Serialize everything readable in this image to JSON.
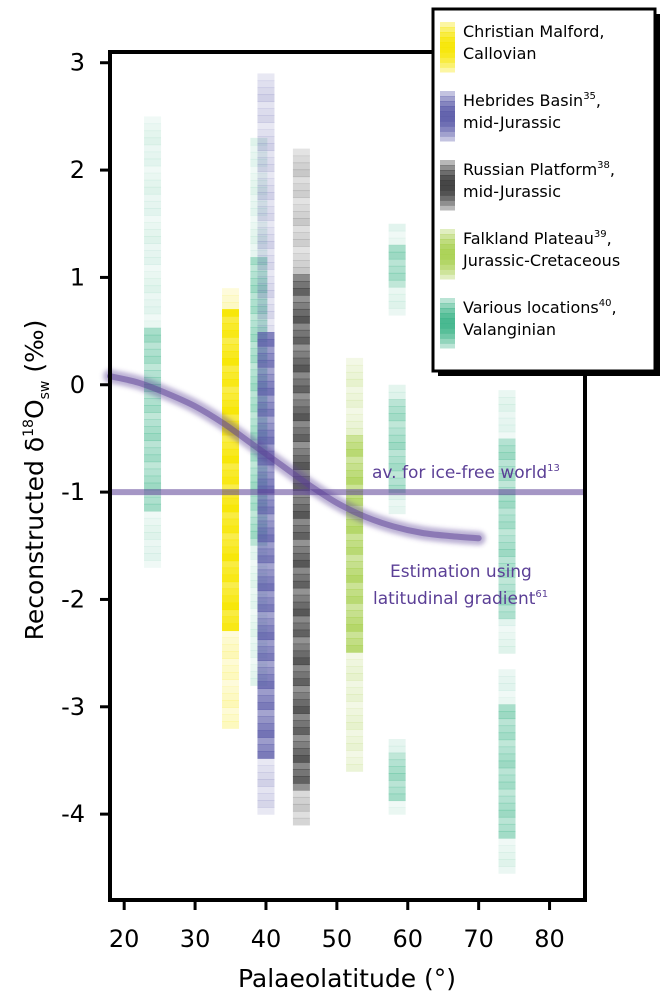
{
  "chart_data": {
    "type": "scatter",
    "xlabel": "Palaeolatitude (°)",
    "ylabel_parts": [
      "Reconstructed  δ",
      "18",
      "O",
      "sw",
      " (‰)"
    ],
    "xlim": [
      18,
      85
    ],
    "ylim": [
      -4.8,
      3.1
    ],
    "xticks": [
      20,
      30,
      40,
      50,
      60,
      70,
      80
    ],
    "yticks": [
      3,
      2,
      1,
      0,
      -1,
      -2,
      -3,
      -4
    ],
    "grid": false,
    "legend_position": "top-right",
    "series": [
      {
        "key": "christian",
        "name": "Christian Malford,",
        "name_line2": "Callovian",
        "sup": "",
        "color": "#f7e600",
        "columns": [
          {
            "x": 35,
            "min": -3.2,
            "max": 0.9,
            "core_min": -2.3,
            "core_max": 0.7
          }
        ]
      },
      {
        "key": "hebrides",
        "name": "Hebrides Basin",
        "name_line2": "mid-Jurassic",
        "sup": "35",
        "color": "#5a5aa8",
        "columns": [
          {
            "x": 40,
            "min": -4.0,
            "max": 2.9,
            "core_min": -3.5,
            "core_max": 0.5
          }
        ]
      },
      {
        "key": "russian",
        "name": "Russian Platform",
        "name_line2": "mid-Jurassic",
        "sup": "38",
        "color": "#3a3a3a",
        "columns": [
          {
            "x": 45,
            "min": -4.1,
            "max": 2.2,
            "core_min": -3.8,
            "core_max": 1.0
          }
        ]
      },
      {
        "key": "falkland",
        "name": "Falkland Plateau",
        "name_line2": "Jurassic-Cretaceous",
        "sup": "39",
        "color": "#a8d050",
        "columns": [
          {
            "x": 52.5,
            "min": -3.6,
            "max": 0.25,
            "core_min": -2.5,
            "core_max": -0.5
          }
        ]
      },
      {
        "key": "various",
        "name": "Various locations",
        "name_line2": "Valanginian",
        "sup": "40",
        "color": "#3fb58a",
        "columns": [
          {
            "x": 24,
            "min": -1.7,
            "max": 2.5,
            "core_min": -1.2,
            "core_max": 0.5
          },
          {
            "x": 39,
            "min": -2.8,
            "max": 2.3,
            "core_min": -1.5,
            "core_max": 1.2
          },
          {
            "x": 58.5,
            "min": 0.65,
            "max": 1.5,
            "core_min": 0.9,
            "core_max": 1.3
          },
          {
            "x": 58.5,
            "min": -1.2,
            "max": 0.0,
            "core_min": -1.0,
            "core_max": -0.1
          },
          {
            "x": 58.5,
            "min": -4.0,
            "max": -3.3,
            "core_min": -3.9,
            "core_max": -3.4
          },
          {
            "x": 74,
            "min": -2.5,
            "max": -0.05,
            "core_min": -2.2,
            "core_max": -0.5
          },
          {
            "x": 74,
            "min": -4.55,
            "max": -2.65,
            "core_min": -4.2,
            "core_max": -3.0
          }
        ]
      }
    ],
    "reference_lines": [
      {
        "key": "icefree",
        "label": "av. for ice-free world",
        "sup": "13",
        "y": -1.0,
        "x_from": 18,
        "x_to": 85,
        "color": "#5b3f96"
      }
    ],
    "gradient_curve": {
      "label_line1": "Estimation using",
      "label_line2": "latitudinal gradient",
      "sup": "61",
      "color": "#5b3f96",
      "x": [
        18,
        22,
        26,
        30,
        34,
        38,
        42,
        46,
        50,
        54,
        58,
        62,
        66,
        70
      ],
      "y": [
        0.08,
        0.02,
        -0.08,
        -0.2,
        -0.36,
        -0.55,
        -0.74,
        -0.93,
        -1.1,
        -1.23,
        -1.32,
        -1.38,
        -1.41,
        -1.43
      ]
    }
  }
}
